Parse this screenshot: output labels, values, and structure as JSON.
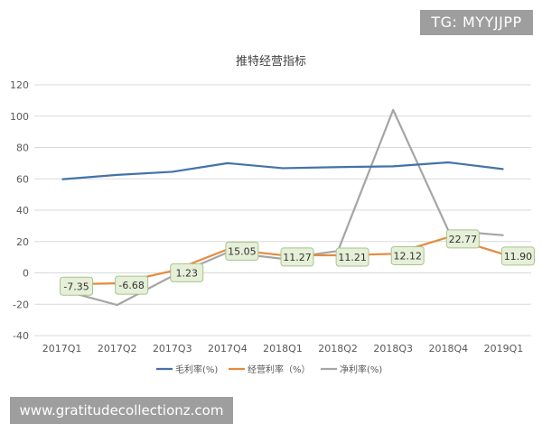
{
  "watermark_top": "TG: MYYJJPP",
  "watermark_bottom": "www.gratitudecollectionz.com",
  "chart_data": {
    "type": "line",
    "title": "推特经营指标",
    "categories": [
      "2017Q1",
      "2017Q2",
      "2017Q3",
      "2017Q4",
      "2018Q1",
      "2018Q2",
      "2018Q3",
      "2018Q4",
      "2019Q1"
    ],
    "ylim": [
      -40,
      120
    ],
    "yticks": [
      "120",
      "100",
      "80",
      "60",
      "40",
      "20",
      "0",
      "-20",
      "-40"
    ],
    "grid": true,
    "legend_position": "bottom",
    "series": [
      {
        "name": "毛利率(%)",
        "color": "#4472a8",
        "values": [
          59.7,
          62.5,
          64.5,
          70.0,
          66.8,
          67.5,
          68.0,
          70.5,
          66.2
        ]
      },
      {
        "name": "经营利率（%）",
        "color": "#e58a3c",
        "values": [
          -7.35,
          -6.68,
          1.23,
          15.05,
          11.27,
          11.21,
          12.12,
          22.77,
          11.9
        ],
        "labels": [
          "-7.35",
          "-6.68",
          "1.23",
          "15.05",
          "11.27",
          "11.21",
          "12.12",
          "22.77",
          "11.90"
        ]
      },
      {
        "name": "净利率(%)",
        "color": "#a5a5a5",
        "values": [
          -11.0,
          -20.5,
          -2.0,
          13.0,
          9.0,
          14.0,
          104.0,
          27.0,
          24.0
        ]
      }
    ]
  }
}
